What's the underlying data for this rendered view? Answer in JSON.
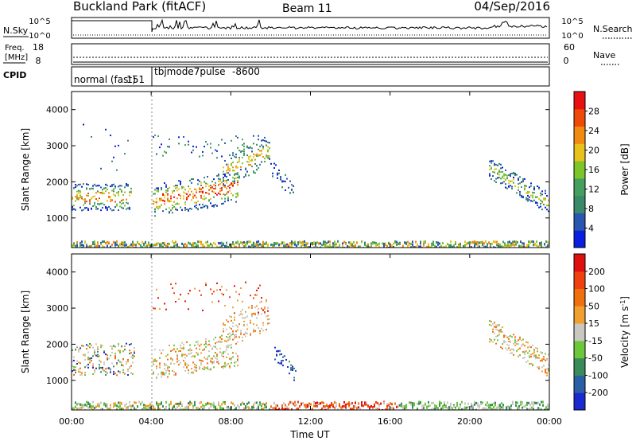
{
  "header": {
    "station": "Buckland Park (fitACF)",
    "beam": "Beam 11",
    "date": "04/Sep/2016"
  },
  "summary": {
    "nsky_label": "N.Sky",
    "nsky_ticks": [
      "10^5",
      "10^0"
    ],
    "nsearch_label": "N.Search",
    "nsearch_ticks": [
      "10^5",
      "10^0"
    ],
    "freq_label": "Freq.",
    "freq_unit": "[MHz]",
    "freq_ticks": [
      "18",
      "8"
    ],
    "nave_label": "Nave",
    "nave_ticks": [
      "60",
      "0"
    ],
    "cpid_label": "CPID",
    "cpid_segments": [
      {
        "name": "normal (fast)",
        "code": "151",
        "start_hour": 0
      },
      {
        "name": "tbjmode7pulse",
        "code": "-8600",
        "start_hour": 4
      }
    ]
  },
  "chart_data": [
    {
      "type": "heatmap",
      "title": "",
      "quantity": "Power",
      "ylabel": "Slant Range [km]",
      "xlabel": "",
      "ylim": [
        180,
        4500
      ],
      "xlim": [
        0,
        24
      ],
      "yticks": [
        "1000",
        "2000",
        "3000",
        "4000"
      ],
      "colorbar": {
        "label": "Power [dB]",
        "range": [
          0,
          32
        ],
        "tick_values": [
          4,
          8,
          12,
          16,
          20,
          24,
          28
        ],
        "ticks": [
          "4",
          "8",
          "12",
          "16",
          "20",
          "24",
          "28"
        ],
        "colors": [
          "#0a1ee0",
          "#2a55b0",
          "#3a8a6a",
          "#45a060",
          "#7cc62a",
          "#e8c21a",
          "#f08a10",
          "#f04a08",
          "#e81010"
        ]
      }
    },
    {
      "type": "heatmap",
      "title": "",
      "quantity": "Velocity",
      "ylabel": "Slant Range [km]",
      "xlabel": "Time UT",
      "ylim": [
        180,
        4500
      ],
      "xlim": [
        0,
        24
      ],
      "yticks": [
        "1000",
        "2000",
        "3000",
        "4000"
      ],
      "xticks": [
        "00:00",
        "04:00",
        "08:00",
        "12:00",
        "16:00",
        "20:00",
        "00:00"
      ],
      "colorbar": {
        "label": "Velocity [m s",
        "label_sup": "-1",
        "label_end": "]",
        "ticks": [
          "200",
          "100",
          "50",
          "15",
          "-15",
          "-50",
          "-100",
          "-200"
        ],
        "colors": [
          "#1a2ad0",
          "#2a5fa8",
          "#3a8a5a",
          "#6cc83a",
          "#c8c8c0",
          "#f0a030",
          "#f07010",
          "#f04010",
          "#e01010"
        ]
      }
    }
  ]
}
